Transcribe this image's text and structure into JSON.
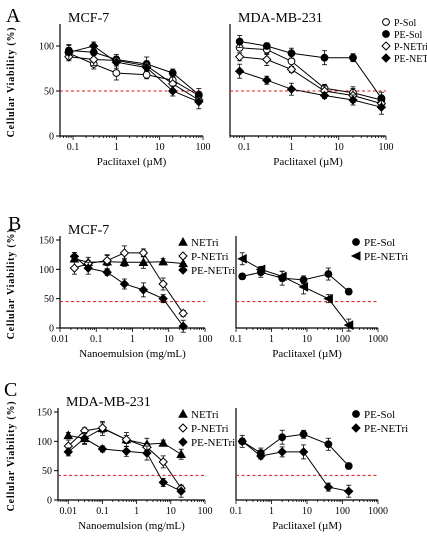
{
  "panel_letters": [
    "A",
    "B",
    "C"
  ],
  "chart_data": [
    {
      "id": "A-left",
      "panel": "A",
      "type": "line",
      "title": "MCF-7",
      "xlabel": "Paclitaxel (µM)",
      "ylabel": "Cellular Viability (%)",
      "xscale": "log",
      "xlim": [
        0.05,
        100
      ],
      "ylim": [
        0,
        120
      ],
      "xticks": [
        "0.1",
        "1",
        "10",
        "100"
      ],
      "yticks": [
        "0",
        "50",
        "100"
      ],
      "threshold": 50,
      "legend": null,
      "series": [
        {
          "name": "P-Sol",
          "marker": "open-circle",
          "x": [
            0.08,
            0.3,
            1,
            5,
            20,
            80
          ],
          "y": [
            92,
            80,
            70,
            68,
            62,
            45
          ]
        },
        {
          "name": "PE-Sol",
          "marker": "filled-circle",
          "x": [
            0.08,
            0.3,
            1,
            5,
            20,
            80
          ],
          "y": [
            95,
            93,
            85,
            80,
            70,
            46
          ]
        },
        {
          "name": "P-NETri",
          "marker": "open-diamond",
          "x": [
            0.08,
            0.3,
            1,
            5,
            20,
            80
          ],
          "y": [
            88,
            85,
            84,
            78,
            58,
            40
          ]
        },
        {
          "name": "PE-NETri",
          "marker": "filled-diamond",
          "x": [
            0.08,
            0.3,
            1,
            5,
            20,
            80
          ],
          "y": [
            93,
            100,
            82,
            76,
            50,
            38
          ]
        }
      ]
    },
    {
      "id": "A-right",
      "panel": "A",
      "type": "line",
      "title": "MDA-MB-231",
      "xlabel": "Paclitaxel (µM)",
      "ylabel": "",
      "xscale": "log",
      "xlim": [
        0.05,
        100
      ],
      "ylim": [
        0,
        120
      ],
      "xticks": [
        "0.1",
        "1",
        "10",
        "100"
      ],
      "yticks": [],
      "threshold": 50,
      "legend": "top-right",
      "series": [
        {
          "name": "P-Sol",
          "marker": "open-circle",
          "x": [
            0.08,
            0.3,
            1,
            5,
            20,
            80
          ],
          "y": [
            98,
            96,
            83,
            53,
            48,
            40
          ]
        },
        {
          "name": "PE-Sol",
          "marker": "filled-circle",
          "x": [
            0.08,
            0.3,
            1,
            5,
            20,
            80
          ],
          "y": [
            105,
            100,
            92,
            87,
            87,
            42
          ]
        },
        {
          "name": "P-NETri",
          "marker": "open-diamond",
          "x": [
            0.08,
            0.3,
            1,
            5,
            20,
            80
          ],
          "y": [
            88,
            85,
            74,
            50,
            45,
            36
          ]
        },
        {
          "name": "PE-NETri",
          "marker": "filled-diamond",
          "x": [
            0.08,
            0.3,
            1,
            5,
            20,
            80
          ],
          "y": [
            72,
            62,
            52,
            45,
            40,
            32
          ]
        }
      ]
    },
    {
      "id": "B-left",
      "panel": "B",
      "type": "line",
      "title": "MCF-7",
      "xlabel": "Nanoemulsion (mg/mL)",
      "ylabel": "Cellular Viability (%)",
      "xscale": "log",
      "xlim": [
        0.01,
        100
      ],
      "ylim": [
        0,
        150
      ],
      "xticks": [
        "0.01",
        "0.1",
        "1",
        "10",
        "100"
      ],
      "yticks": [
        "0",
        "50",
        "100",
        "150"
      ],
      "threshold": 45,
      "legend": "top-right",
      "series": [
        {
          "name": "NETri",
          "marker": "filled-triangle",
          "x": [
            0.025,
            0.06,
            0.2,
            0.6,
            2,
            7,
            25
          ],
          "y": [
            118,
            112,
            113,
            112,
            112,
            113,
            110
          ]
        },
        {
          "name": "P-NETri",
          "marker": "open-diamond",
          "x": [
            0.025,
            0.06,
            0.2,
            0.6,
            2,
            7,
            25
          ],
          "y": [
            102,
            110,
            115,
            128,
            128,
            75,
            25
          ]
        },
        {
          "name": "PE-NETri",
          "marker": "filled-diamond",
          "x": [
            0.025,
            0.06,
            0.2,
            0.6,
            2,
            7,
            25
          ],
          "y": [
            122,
            102,
            95,
            75,
            65,
            50,
            3
          ]
        }
      ]
    },
    {
      "id": "B-right",
      "panel": "B",
      "type": "line",
      "title": "",
      "xlabel": "Paclitaxel (µM)",
      "ylabel": "",
      "xscale": "log",
      "xlim": [
        0.1,
        1000
      ],
      "ylim": [
        0,
        150
      ],
      "xticks": [
        "0.1",
        "1",
        "10",
        "100",
        "1000"
      ],
      "yticks": [],
      "threshold": 45,
      "legend": "top-right",
      "series": [
        {
          "name": "PE-Sol",
          "marker": "filled-circle",
          "x": [
            0.15,
            0.5,
            2,
            8,
            40,
            150
          ],
          "y": [
            88,
            95,
            85,
            82,
            92,
            62
          ]
        },
        {
          "name": "PE-NETri",
          "marker": "filled-half-triangle",
          "x": [
            0.15,
            0.5,
            2,
            8,
            40,
            150
          ],
          "y": [
            118,
            100,
            88,
            70,
            50,
            5
          ]
        }
      ]
    },
    {
      "id": "C-left",
      "panel": "C",
      "type": "line",
      "title": "MDA-MB-231",
      "xlabel": "Nanoemulsion (mg/mL)",
      "ylabel": "Cellular Viability (%)",
      "xscale": "log",
      "xlim": [
        0.005,
        100
      ],
      "ylim": [
        0,
        150
      ],
      "xticks": [
        "0.01",
        "0.1",
        "1",
        "10",
        "100"
      ],
      "yticks": [
        "0",
        "50",
        "100",
        "150"
      ],
      "threshold": 42,
      "legend": "top-right",
      "series": [
        {
          "name": "NETri",
          "marker": "filled-triangle",
          "x": [
            0.01,
            0.03,
            0.1,
            0.5,
            2,
            6,
            20
          ],
          "y": [
            110,
            105,
            122,
            103,
            95,
            97,
            78
          ]
        },
        {
          "name": "P-NETri",
          "marker": "open-diamond",
          "x": [
            0.01,
            0.03,
            0.1,
            0.5,
            2,
            6,
            20
          ],
          "y": [
            92,
            118,
            123,
            103,
            90,
            65,
            20
          ]
        },
        {
          "name": "PE-NETri",
          "marker": "filled-diamond",
          "x": [
            0.01,
            0.03,
            0.1,
            0.5,
            2,
            6,
            20
          ],
          "y": [
            82,
            105,
            87,
            83,
            80,
            30,
            15
          ]
        }
      ]
    },
    {
      "id": "C-right",
      "panel": "C",
      "type": "line",
      "title": "",
      "xlabel": "Paclitaxel (µM)",
      "ylabel": "",
      "xscale": "log",
      "xlim": [
        0.1,
        1000
      ],
      "ylim": [
        0,
        150
      ],
      "xticks": [
        "0.1",
        "1",
        "10",
        "100",
        "1000"
      ],
      "yticks": [],
      "threshold": 42,
      "legend": "top-right",
      "series": [
        {
          "name": "PE-Sol",
          "marker": "filled-circle",
          "x": [
            0.15,
            0.5,
            2,
            8,
            40,
            150
          ],
          "y": [
            100,
            80,
            107,
            112,
            95,
            58
          ]
        },
        {
          "name": "PE-NETri",
          "marker": "filled-diamond",
          "x": [
            0.15,
            0.5,
            2,
            8,
            40,
            150
          ],
          "y": [
            100,
            75,
            82,
            82,
            22,
            15
          ]
        }
      ]
    }
  ]
}
